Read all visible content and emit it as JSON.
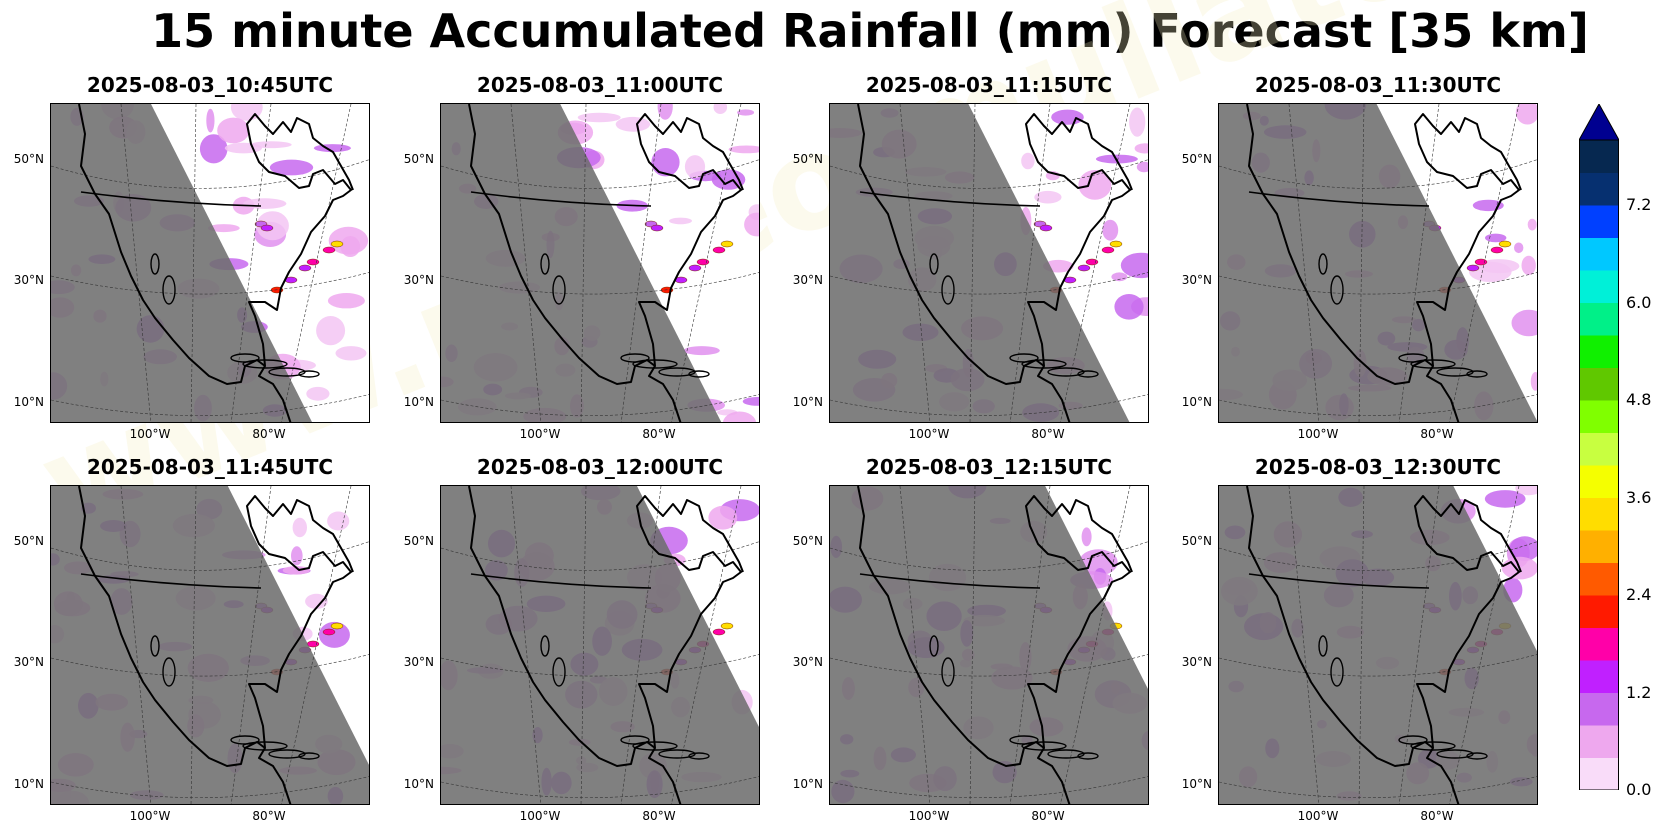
{
  "figure": {
    "title": "15 minute Accumulated Rainfall (mm) Forecast [35 km]",
    "watermark": "www.meteo-mullator.com"
  },
  "panels": [
    {
      "time": "2025-08-03_10:45UTC",
      "night_offset": 0.0
    },
    {
      "time": "2025-08-03_11:00UTC",
      "night_offset": 0.06
    },
    {
      "time": "2025-08-03_11:15UTC",
      "night_offset": 0.12
    },
    {
      "time": "2025-08-03_11:30UTC",
      "night_offset": 0.18
    },
    {
      "time": "2025-08-03_11:45UTC",
      "night_offset": 0.24
    },
    {
      "time": "2025-08-03_12:00UTC",
      "night_offset": 0.3
    },
    {
      "time": "2025-08-03_12:15UTC",
      "night_offset": 0.36
    },
    {
      "time": "2025-08-03_12:30UTC",
      "night_offset": 0.42
    }
  ],
  "axes": {
    "lat_labels": [
      "50°N",
      "30°N",
      "10°N"
    ],
    "lon_labels": [
      "100°W",
      "80°W"
    ]
  },
  "colorbar": {
    "tick_labels": [
      "0.0",
      "1.2",
      "2.4",
      "3.6",
      "4.8",
      "6.0",
      "7.2"
    ],
    "colors": [
      "#f9dcf9",
      "#eea8ee",
      "#c768ee",
      "#c020ff",
      "#ff00a8",
      "#ff1a00",
      "#ff5a00",
      "#ffb000",
      "#ffdd00",
      "#f5ff00",
      "#c8ff40",
      "#80ff00",
      "#60c800",
      "#10f000",
      "#00f088",
      "#00f0d8",
      "#00c8ff",
      "#0040ff",
      "#063070",
      "#062850"
    ],
    "extend_color": "#000090"
  }
}
